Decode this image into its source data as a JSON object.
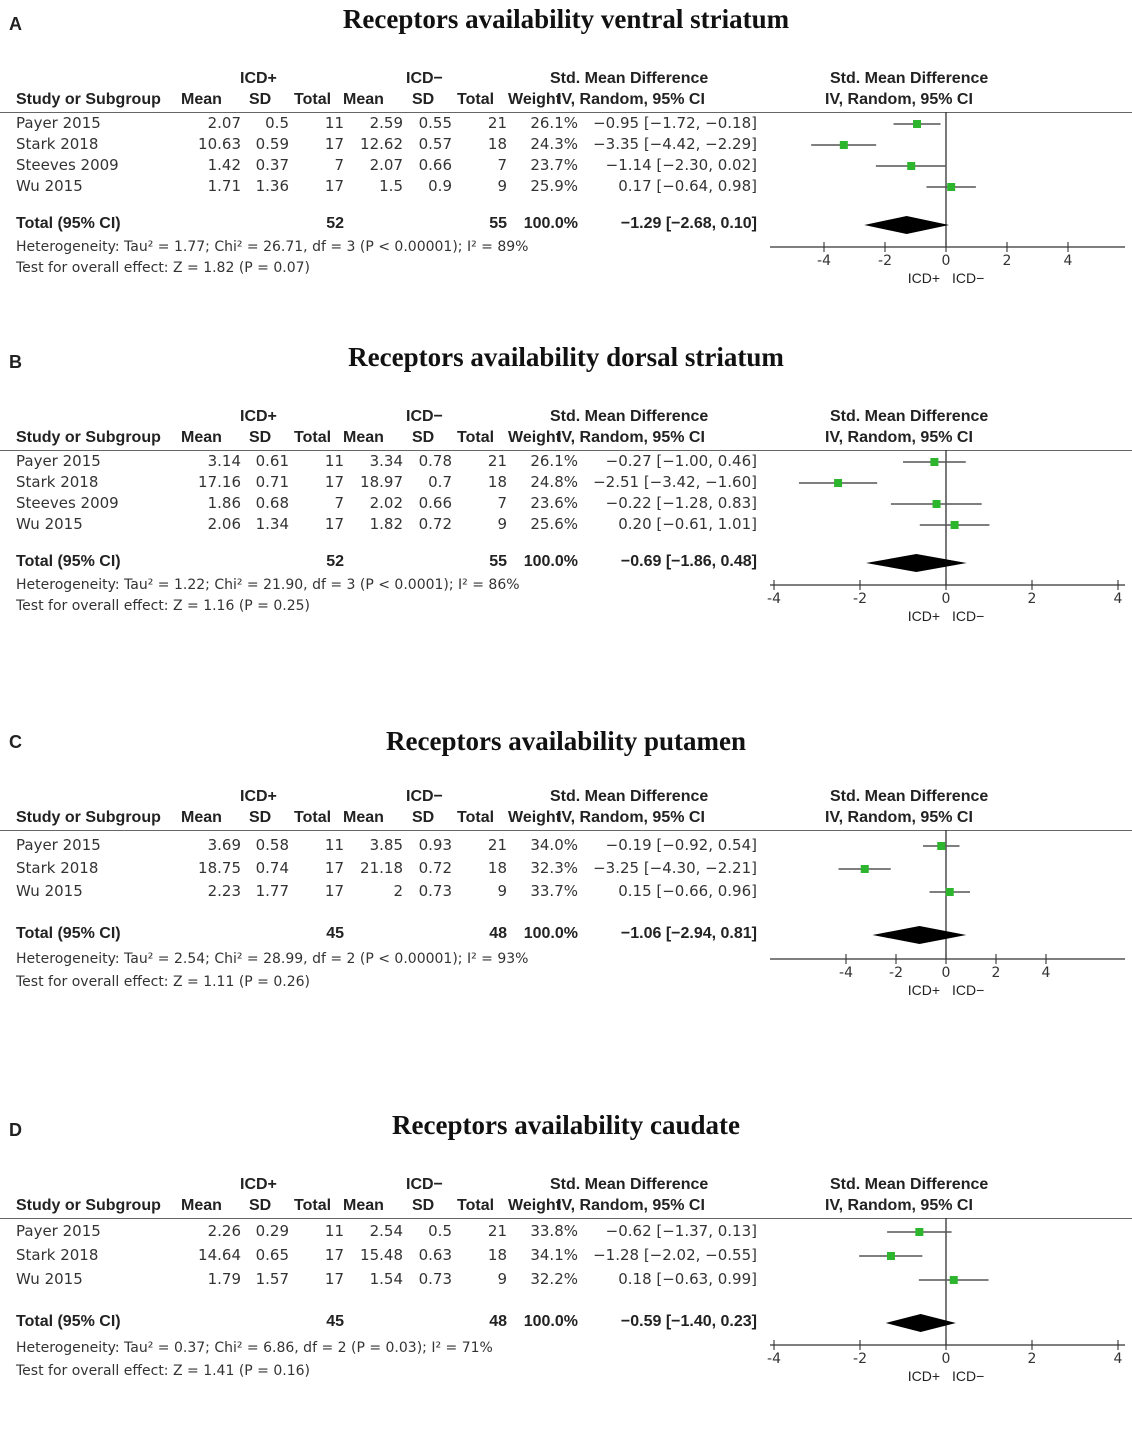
{
  "headers": {
    "group_pos": "ICD+",
    "group_neg": "ICD−",
    "study": "Study or Subgroup",
    "mean": "Mean",
    "sd": "SD",
    "total": "Total",
    "weight": "Weight",
    "smd1": "Std. Mean Difference",
    "smd2": "IV, Random, 95% CI",
    "plot1": "Std. Mean Difference",
    "plot2": "IV, Random, 95% CI",
    "favours_left": "ICD+",
    "favours_right": "ICD−"
  },
  "colors": {
    "marker": "#2db52d",
    "diamond": "#000000",
    "ci": "#555555"
  },
  "chart_data": [
    {
      "type": "forest",
      "letter": "A",
      "title": "Receptors availability ventral striatum",
      "xlim": [
        -6,
        6
      ],
      "ticks": [
        "-4",
        "-2",
        "0",
        "2",
        "4"
      ],
      "tick_values": [
        -4,
        -2,
        0,
        2,
        4
      ],
      "studies": [
        {
          "name": "Payer 2015",
          "m1": "2.07",
          "sd1": "0.5",
          "n1": "11",
          "m2": "2.59",
          "sd2": "0.55",
          "n2": "21",
          "weight": "26.1%",
          "ci": "−0.95 [−1.72, −0.18]",
          "est": -0.95,
          "lo": -1.72,
          "hi": -0.18
        },
        {
          "name": "Stark 2018",
          "m1": "10.63",
          "sd1": "0.59",
          "n1": "17",
          "m2": "12.62",
          "sd2": "0.57",
          "n2": "18",
          "weight": "24.3%",
          "ci": "−3.35 [−4.42, −2.29]",
          "est": -3.35,
          "lo": -4.42,
          "hi": -2.29
        },
        {
          "name": "Steeves 2009",
          "m1": "1.42",
          "sd1": "0.37",
          "n1": "7",
          "m2": "2.07",
          "sd2": "0.66",
          "n2": "7",
          "weight": "23.7%",
          "ci": "−1.14 [−2.30, 0.02]",
          "est": -1.14,
          "lo": -2.3,
          "hi": 0.02
        },
        {
          "name": "Wu 2015",
          "m1": "1.71",
          "sd1": "1.36",
          "n1": "17",
          "m2": "1.5",
          "sd2": "0.9",
          "n2": "9",
          "weight": "25.9%",
          "ci": "0.17 [−0.64, 0.98]",
          "est": 0.17,
          "lo": -0.64,
          "hi": 0.98
        }
      ],
      "total": {
        "label": "Total (95% CI)",
        "n1": "52",
        "n2": "55",
        "weight": "100.0%",
        "ci": "−1.29 [−2.68, 0.10]",
        "est": -1.29,
        "lo": -2.68,
        "hi": 0.1
      },
      "heterogeneity": "Heterogeneity: Tau² = 1.77; Chi² = 26.71, df = 3 (P < 0.00001); I² = 89%",
      "overall": "Test for overall effect: Z = 1.82 (P = 0.07)"
    },
    {
      "type": "forest",
      "letter": "B",
      "title": "Receptors availability dorsal striatum",
      "xlim": [
        -4,
        4
      ],
      "ticks": [
        "-4",
        "-2",
        "0",
        "2",
        "4"
      ],
      "tick_values": [
        -4,
        -2,
        0,
        2,
        4
      ],
      "studies": [
        {
          "name": "Payer 2015",
          "m1": "3.14",
          "sd1": "0.61",
          "n1": "11",
          "m2": "3.34",
          "sd2": "0.78",
          "n2": "21",
          "weight": "26.1%",
          "ci": "−0.27 [−1.00, 0.46]",
          "est": -0.27,
          "lo": -1.0,
          "hi": 0.46
        },
        {
          "name": "Stark 2018",
          "m1": "17.16",
          "sd1": "0.71",
          "n1": "17",
          "m2": "18.97",
          "sd2": "0.7",
          "n2": "18",
          "weight": "24.8%",
          "ci": "−2.51 [−3.42, −1.60]",
          "est": -2.51,
          "lo": -3.42,
          "hi": -1.6
        },
        {
          "name": "Steeves 2009",
          "m1": "1.86",
          "sd1": "0.68",
          "n1": "7",
          "m2": "2.02",
          "sd2": "0.66",
          "n2": "7",
          "weight": "23.6%",
          "ci": "−0.22 [−1.28, 0.83]",
          "est": -0.22,
          "lo": -1.28,
          "hi": 0.83
        },
        {
          "name": "Wu 2015",
          "m1": "2.06",
          "sd1": "1.34",
          "n1": "17",
          "m2": "1.82",
          "sd2": "0.72",
          "n2": "9",
          "weight": "25.6%",
          "ci": "0.20 [−0.61, 1.01]",
          "est": 0.2,
          "lo": -0.61,
          "hi": 1.01
        }
      ],
      "total": {
        "label": "Total (95% CI)",
        "n1": "52",
        "n2": "55",
        "weight": "100.0%",
        "ci": "−0.69 [−1.86, 0.48]",
        "est": -0.69,
        "lo": -1.86,
        "hi": 0.48
      },
      "heterogeneity": "Heterogeneity: Tau² = 1.22; Chi² = 21.90, df = 3 (P < 0.0001); I² = 86%",
      "overall": "Test for overall effect: Z = 1.16 (P = 0.25)"
    },
    {
      "type": "forest",
      "letter": "C",
      "title": "Receptors availability putamen",
      "xlim": [
        -8,
        8
      ],
      "ticks": [
        "-4",
        "-2",
        "0",
        "2",
        "4"
      ],
      "tick_values": [
        -4,
        -2,
        0,
        2,
        4
      ],
      "studies": [
        {
          "name": "Payer 2015",
          "m1": "3.69",
          "sd1": "0.58",
          "n1": "11",
          "m2": "3.85",
          "sd2": "0.93",
          "n2": "21",
          "weight": "34.0%",
          "ci": "−0.19 [−0.92, 0.54]",
          "est": -0.19,
          "lo": -0.92,
          "hi": 0.54
        },
        {
          "name": "Stark 2018",
          "m1": "18.75",
          "sd1": "0.74",
          "n1": "17",
          "m2": "21.18",
          "sd2": "0.72",
          "n2": "18",
          "weight": "32.3%",
          "ci": "−3.25 [−4.30, −2.21]",
          "est": -3.25,
          "lo": -4.3,
          "hi": -2.21
        },
        {
          "name": "Wu 2015",
          "m1": "2.23",
          "sd1": "1.77",
          "n1": "17",
          "m2": "2",
          "sd2": "0.73",
          "n2": "9",
          "weight": "33.7%",
          "ci": "0.15 [−0.66, 0.96]",
          "est": 0.15,
          "lo": -0.66,
          "hi": 0.96
        }
      ],
      "total": {
        "label": "Total (95% CI)",
        "n1": "45",
        "n2": "48",
        "weight": "100.0%",
        "ci": "−1.06 [−2.94, 0.81]",
        "est": -1.06,
        "lo": -2.94,
        "hi": 0.81
      },
      "heterogeneity": "Heterogeneity: Tau² = 2.54; Chi² = 28.99, df = 2 (P < 0.00001); I² = 93%",
      "overall": "Test for overall effect: Z = 1.11 (P = 0.26)"
    },
    {
      "type": "forest",
      "letter": "D",
      "title": "Receptors availability caudate",
      "xlim": [
        -4,
        4
      ],
      "ticks": [
        "-4",
        "-2",
        "0",
        "2",
        "4"
      ],
      "tick_values": [
        -4,
        -2,
        0,
        2,
        4
      ],
      "studies": [
        {
          "name": "Payer 2015",
          "m1": "2.26",
          "sd1": "0.29",
          "n1": "11",
          "m2": "2.54",
          "sd2": "0.5",
          "n2": "21",
          "weight": "33.8%",
          "ci": "−0.62 [−1.37, 0.13]",
          "est": -0.62,
          "lo": -1.37,
          "hi": 0.13
        },
        {
          "name": "Stark 2018",
          "m1": "14.64",
          "sd1": "0.65",
          "n1": "17",
          "m2": "15.48",
          "sd2": "0.63",
          "n2": "18",
          "weight": "34.1%",
          "ci": "−1.28 [−2.02, −0.55]",
          "est": -1.28,
          "lo": -2.02,
          "hi": -0.55
        },
        {
          "name": "Wu 2015",
          "m1": "1.79",
          "sd1": "1.57",
          "n1": "17",
          "m2": "1.54",
          "sd2": "0.73",
          "n2": "9",
          "weight": "32.2%",
          "ci": "0.18 [−0.63, 0.99]",
          "est": 0.18,
          "lo": -0.63,
          "hi": 0.99
        }
      ],
      "total": {
        "label": "Total (95% CI)",
        "n1": "45",
        "n2": "48",
        "weight": "100.0%",
        "ci": "−0.59 [−1.40, 0.23]",
        "est": -0.59,
        "lo": -1.4,
        "hi": 0.23
      },
      "heterogeneity": "Heterogeneity: Tau² = 0.37; Chi² = 6.86, df = 2 (P = 0.03); I² = 71%",
      "overall": "Test for overall effect: Z = 1.41 (P = 0.16)"
    }
  ]
}
